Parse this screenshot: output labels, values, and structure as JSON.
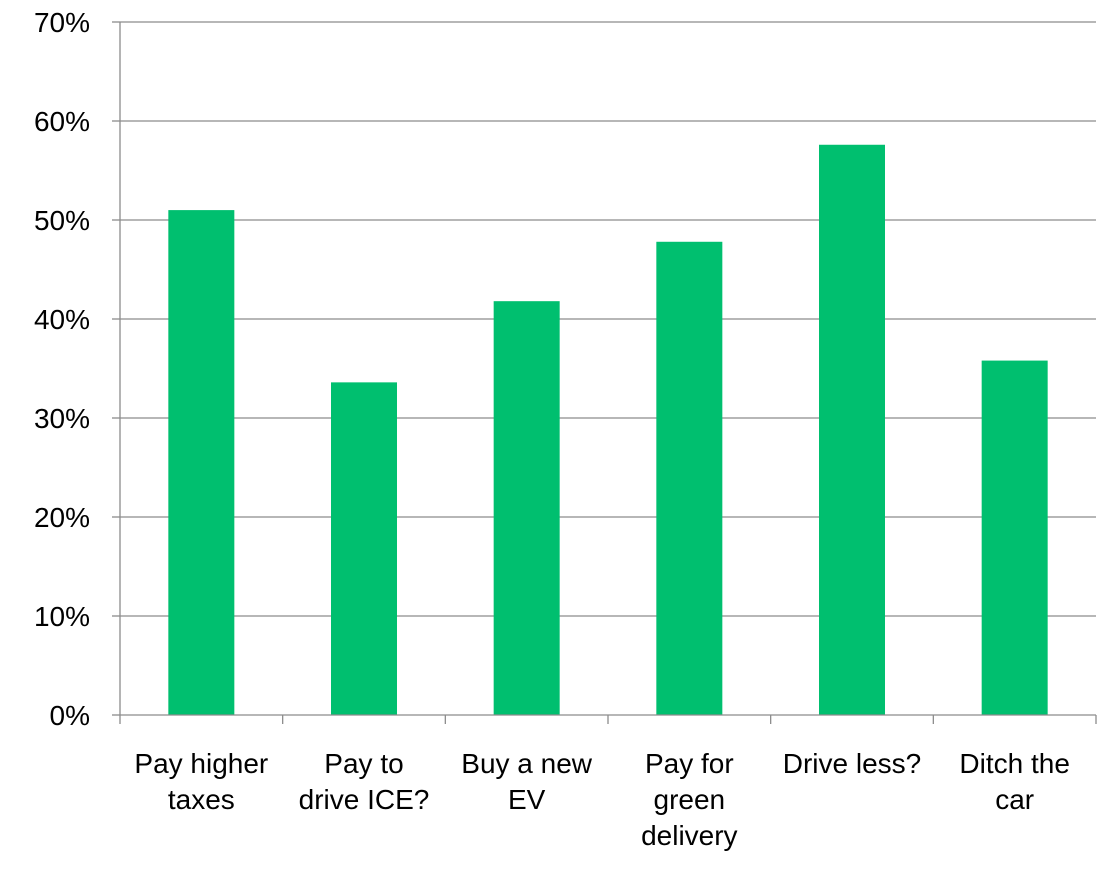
{
  "chart_data": {
    "type": "bar",
    "title": "",
    "xlabel": "",
    "ylabel": "",
    "categories": [
      [
        "Pay higher",
        "taxes"
      ],
      [
        "Pay to",
        "drive ICE?"
      ],
      [
        "Buy a new",
        "EV"
      ],
      [
        "Pay for",
        "green",
        "delivery"
      ],
      [
        "Drive less?"
      ],
      [
        "Ditch the",
        "car"
      ]
    ],
    "values": [
      51,
      33.6,
      41.8,
      47.8,
      57.6,
      35.8
    ],
    "ylim": [
      0,
      70
    ],
    "yticks": [
      0,
      10,
      20,
      30,
      40,
      50,
      60,
      70
    ],
    "ytick_labels": [
      "0%",
      "10%",
      "20%",
      "30%",
      "40%",
      "50%",
      "60%",
      "70%"
    ],
    "grid": true,
    "legend": "none",
    "colors": {
      "bar": "#00BF6F",
      "grid": "#8C8C8C",
      "axis": "#8C8C8C",
      "text": "#000000"
    }
  }
}
